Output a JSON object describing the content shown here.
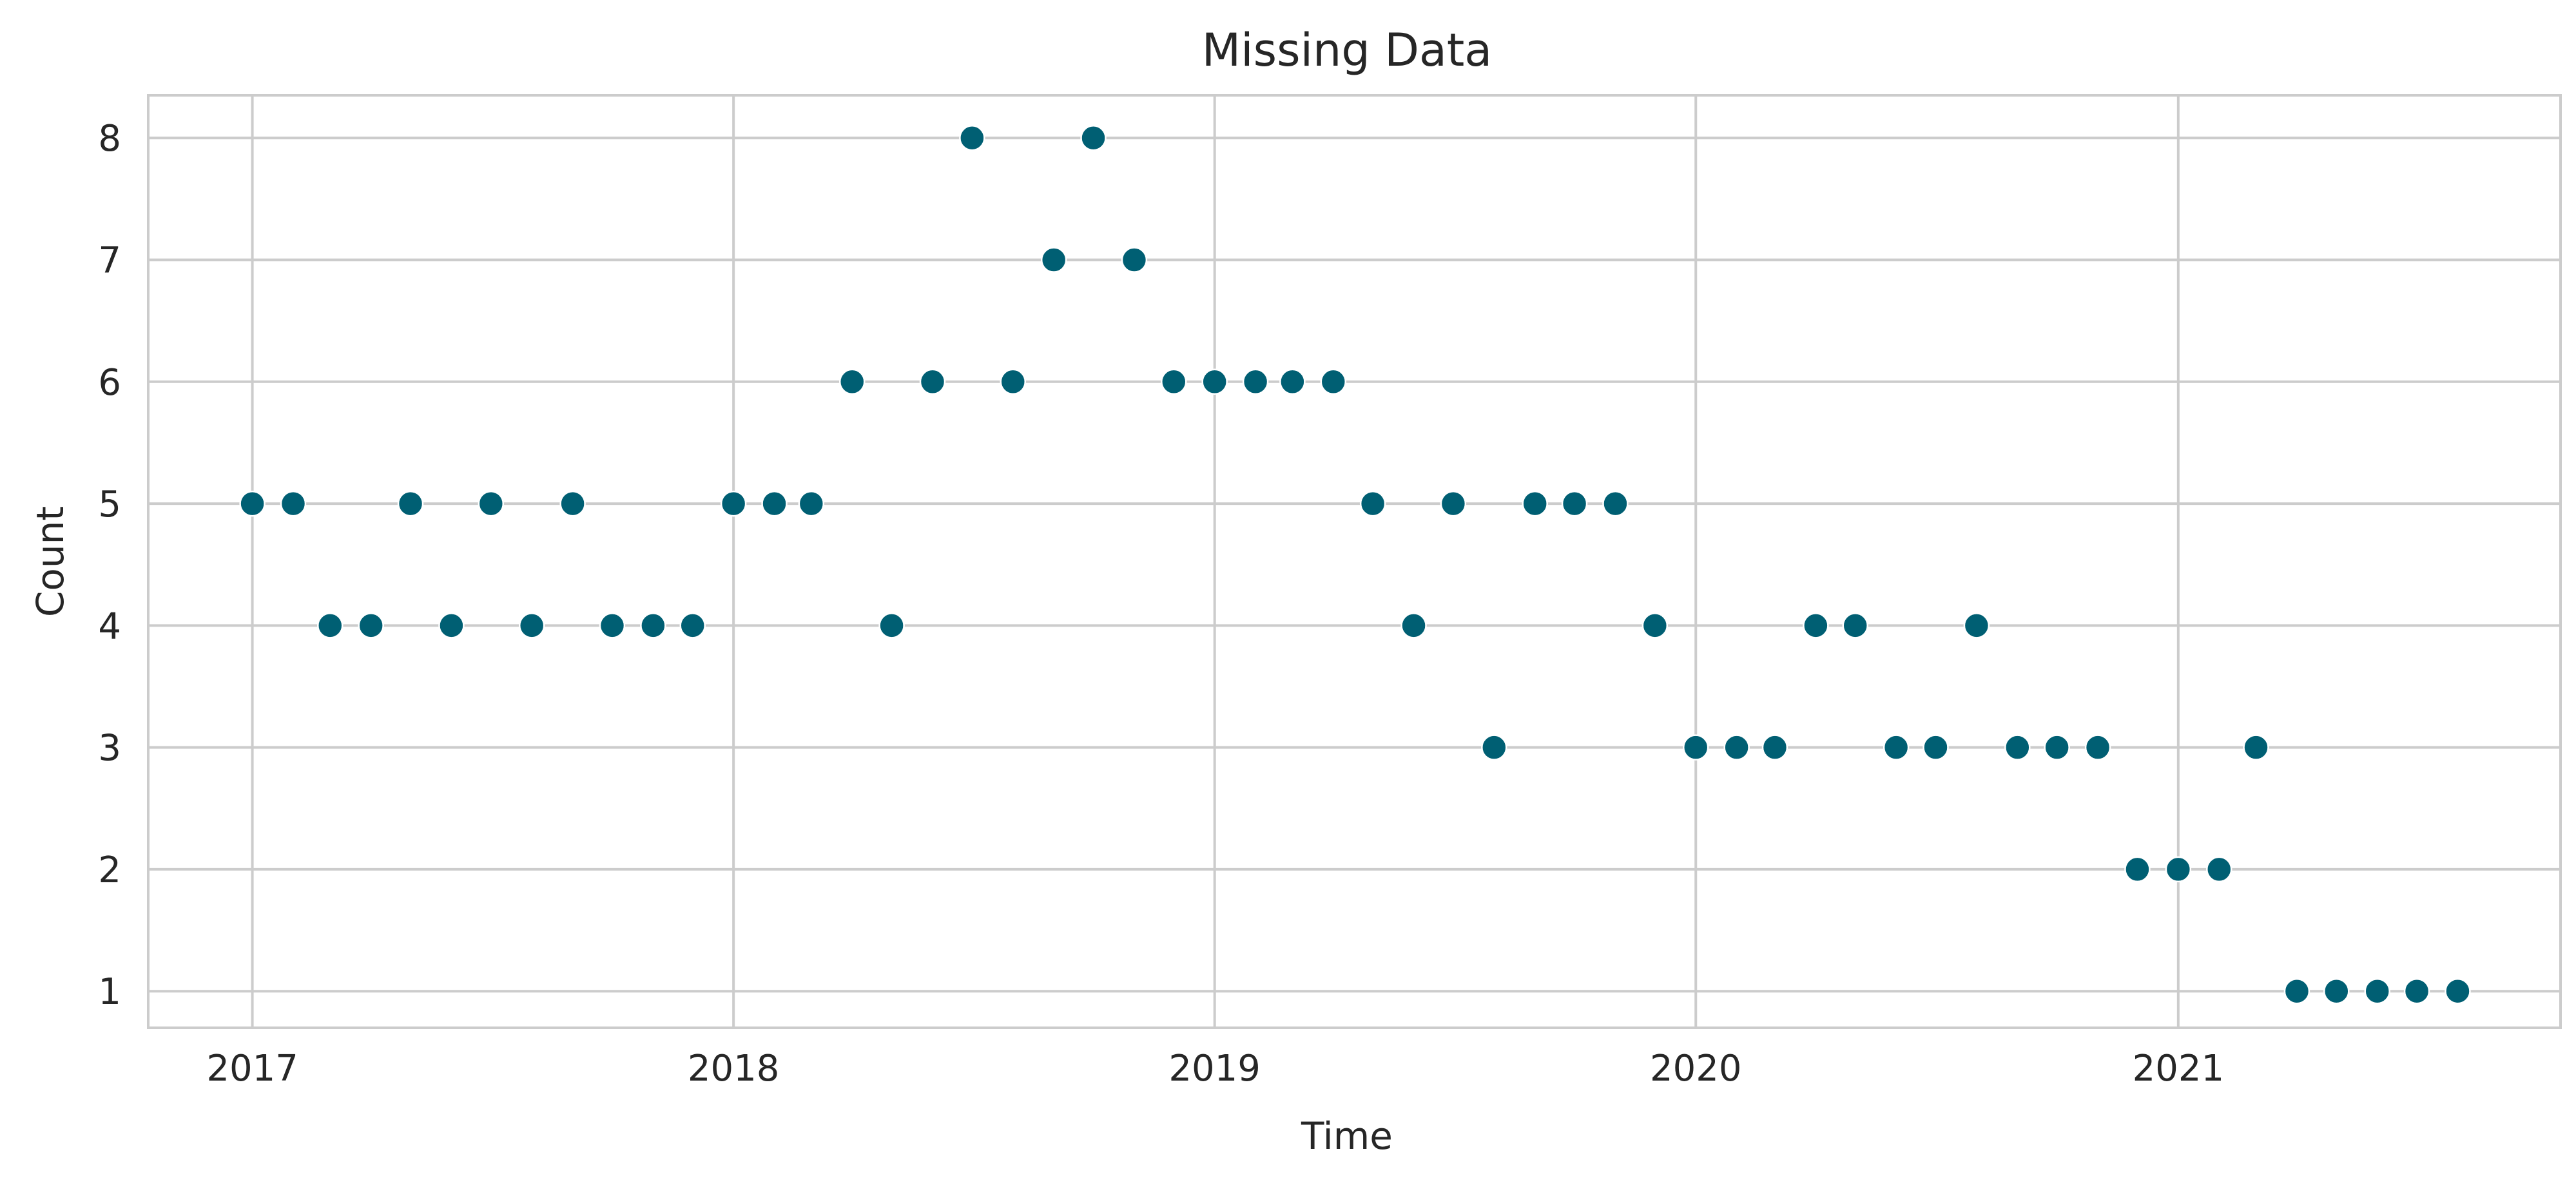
{
  "chart_data": {
    "type": "scatter",
    "title": "Missing Data",
    "xlabel": "Time",
    "ylabel": "Count",
    "x_ticks": [
      "2017",
      "2018",
      "2019",
      "2020",
      "2021"
    ],
    "y_ticks": [
      1,
      2,
      3,
      4,
      5,
      6,
      7,
      8
    ],
    "xlim": [
      "2016-10-14",
      "2021-10-18"
    ],
    "ylim": [
      0.7,
      8.35
    ],
    "grid": true,
    "marker_color": "#005f73",
    "points": [
      {
        "x": "2017-01",
        "y": 5
      },
      {
        "x": "2017-02",
        "y": 5
      },
      {
        "x": "2017-03",
        "y": 4
      },
      {
        "x": "2017-04",
        "y": 4
      },
      {
        "x": "2017-05",
        "y": 5
      },
      {
        "x": "2017-06",
        "y": 4
      },
      {
        "x": "2017-07",
        "y": 5
      },
      {
        "x": "2017-08",
        "y": 4
      },
      {
        "x": "2017-09",
        "y": 5
      },
      {
        "x": "2017-10",
        "y": 4
      },
      {
        "x": "2017-11",
        "y": 4
      },
      {
        "x": "2017-12",
        "y": 4
      },
      {
        "x": "2018-01",
        "y": 5
      },
      {
        "x": "2018-02",
        "y": 5
      },
      {
        "x": "2018-03",
        "y": 5
      },
      {
        "x": "2018-04",
        "y": 6
      },
      {
        "x": "2018-05",
        "y": 4
      },
      {
        "x": "2018-06",
        "y": 6
      },
      {
        "x": "2018-07",
        "y": 8
      },
      {
        "x": "2018-08",
        "y": 6
      },
      {
        "x": "2018-09",
        "y": 7
      },
      {
        "x": "2018-10",
        "y": 8
      },
      {
        "x": "2018-11",
        "y": 7
      },
      {
        "x": "2018-12",
        "y": 6
      },
      {
        "x": "2019-01",
        "y": 6
      },
      {
        "x": "2019-02",
        "y": 6
      },
      {
        "x": "2019-03",
        "y": 6
      },
      {
        "x": "2019-04",
        "y": 6
      },
      {
        "x": "2019-05",
        "y": 5
      },
      {
        "x": "2019-06",
        "y": 4
      },
      {
        "x": "2019-07",
        "y": 5
      },
      {
        "x": "2019-08",
        "y": 3
      },
      {
        "x": "2019-09",
        "y": 5
      },
      {
        "x": "2019-10",
        "y": 5
      },
      {
        "x": "2019-11",
        "y": 5
      },
      {
        "x": "2019-12",
        "y": 4
      },
      {
        "x": "2020-01",
        "y": 3
      },
      {
        "x": "2020-02",
        "y": 3
      },
      {
        "x": "2020-03",
        "y": 3
      },
      {
        "x": "2020-04",
        "y": 4
      },
      {
        "x": "2020-05",
        "y": 4
      },
      {
        "x": "2020-06",
        "y": 3
      },
      {
        "x": "2020-07",
        "y": 3
      },
      {
        "x": "2020-08",
        "y": 4
      },
      {
        "x": "2020-09",
        "y": 3
      },
      {
        "x": "2020-10",
        "y": 3
      },
      {
        "x": "2020-11",
        "y": 3
      },
      {
        "x": "2020-12",
        "y": 2
      },
      {
        "x": "2021-01",
        "y": 2
      },
      {
        "x": "2021-02",
        "y": 2
      },
      {
        "x": "2021-03",
        "y": 3
      },
      {
        "x": "2021-04",
        "y": 1
      },
      {
        "x": "2021-05",
        "y": 1
      },
      {
        "x": "2021-06",
        "y": 1
      },
      {
        "x": "2021-07",
        "y": 1
      },
      {
        "x": "2021-08",
        "y": 1
      }
    ]
  }
}
